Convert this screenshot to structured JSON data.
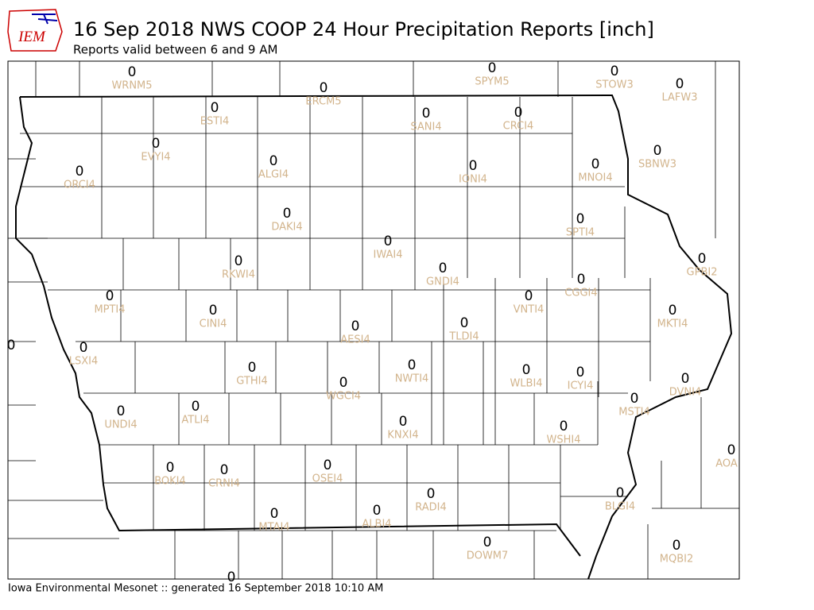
{
  "header": {
    "logo": "IEM",
    "title": "16 Sep 2018 NWS COOP 24 Hour Precipitation Reports [inch]",
    "subtitle": "Reports valid between 6 and 9 AM"
  },
  "footer": "Iowa Environmental Mesonet :: generated 16 September 2018 10:10 AM",
  "stations": [
    {
      "id": "WRNM5",
      "value": "0"
    },
    {
      "id": "ERCM5",
      "value": "0"
    },
    {
      "id": "SPYM5",
      "value": "0"
    },
    {
      "id": "STOW3",
      "value": "0"
    },
    {
      "id": "LAFW3",
      "value": "0"
    },
    {
      "id": "ESTI4",
      "value": "0"
    },
    {
      "id": "SANI4",
      "value": "0"
    },
    {
      "id": "CRCI4",
      "value": "0"
    },
    {
      "id": "EVYI4",
      "value": "0"
    },
    {
      "id": "SBNW3",
      "value": "0"
    },
    {
      "id": "ORCI4",
      "value": "0"
    },
    {
      "id": "ALGI4",
      "value": "0"
    },
    {
      "id": "IONI4",
      "value": "0"
    },
    {
      "id": "MNOI4",
      "value": "0"
    },
    {
      "id": "DAKI4",
      "value": "0"
    },
    {
      "id": "SPTI4",
      "value": "0"
    },
    {
      "id": "IWAI4",
      "value": "0"
    },
    {
      "id": "RKWI4",
      "value": "0"
    },
    {
      "id": "GNDI4",
      "value": "0"
    },
    {
      "id": "GPBI2",
      "value": "0"
    },
    {
      "id": "CGGI4",
      "value": "0"
    },
    {
      "id": "MPTI4",
      "value": "0"
    },
    {
      "id": "VNTI4",
      "value": "0"
    },
    {
      "id": "CINI4",
      "value": "0"
    },
    {
      "id": "MKTI4",
      "value": "0"
    },
    {
      "id": "AESI4",
      "value": "0"
    },
    {
      "id": "TLDI4",
      "value": "0"
    },
    {
      "id": "LSXI4",
      "value": "0"
    },
    {
      "id": "GTHI4",
      "value": "0"
    },
    {
      "id": "NWTI4",
      "value": "0"
    },
    {
      "id": "WLBI4",
      "value": "0"
    },
    {
      "id": "ICYI4",
      "value": "0"
    },
    {
      "id": "DVNI4",
      "value": "0"
    },
    {
      "id": "WGCI4",
      "value": "0"
    },
    {
      "id": "MSTI4",
      "value": "0"
    },
    {
      "id": "ATLI4",
      "value": "0"
    },
    {
      "id": "UNDI4",
      "value": "0"
    },
    {
      "id": "KNXI4",
      "value": "0"
    },
    {
      "id": "WSHI4",
      "value": "0"
    },
    {
      "id": "AOA",
      "value": "0"
    },
    {
      "id": "BOKI4",
      "value": "0"
    },
    {
      "id": "CRNI4",
      "value": "0"
    },
    {
      "id": "OSEI4",
      "value": "0"
    },
    {
      "id": "RADI4",
      "value": "0"
    },
    {
      "id": "BLGI4",
      "value": "0"
    },
    {
      "id": "MTAI4",
      "value": "0"
    },
    {
      "id": "ALBI4",
      "value": "0"
    },
    {
      "id": "DOWM7",
      "value": "0"
    },
    {
      "id": "MQBI2",
      "value": "0"
    },
    {
      "id": null,
      "value": "0"
    },
    {
      "id": null,
      "value": "0"
    }
  ]
}
